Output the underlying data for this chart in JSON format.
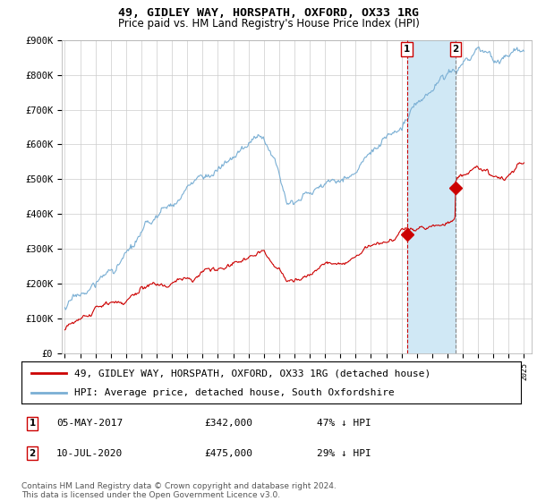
{
  "title": "49, GIDLEY WAY, HORSPATH, OXFORD, OX33 1RG",
  "subtitle": "Price paid vs. HM Land Registry's House Price Index (HPI)",
  "ylim": [
    0,
    900000
  ],
  "yticks": [
    0,
    100000,
    200000,
    300000,
    400000,
    500000,
    600000,
    700000,
    800000,
    900000
  ],
  "ytick_labels": [
    "£0",
    "£100K",
    "£200K",
    "£300K",
    "£400K",
    "£500K",
    "£600K",
    "£700K",
    "£800K",
    "£900K"
  ],
  "hpi_color": "#7aafd4",
  "price_color": "#cc0000",
  "vline1_color": "#cc0000",
  "vline2_color": "#888888",
  "fill_color": "#d0e8f5",
  "background_color": "#ffffff",
  "grid_color": "#cccccc",
  "sale1_date_num": 2017.35,
  "sale1_price": 342000,
  "sale1_label": "1",
  "sale2_date_num": 2020.53,
  "sale2_price": 475000,
  "sale2_label": "2",
  "legend_line1": "49, GIDLEY WAY, HORSPATH, OXFORD, OX33 1RG (detached house)",
  "legend_line2": "HPI: Average price, detached house, South Oxfordshire",
  "table_row1": [
    "1",
    "05-MAY-2017",
    "£342,000",
    "47% ↓ HPI"
  ],
  "table_row2": [
    "2",
    "10-JUL-2020",
    "£475,000",
    "29% ↓ HPI"
  ],
  "footer": "Contains HM Land Registry data © Crown copyright and database right 2024.\nThis data is licensed under the Open Government Licence v3.0.",
  "title_fontsize": 9.5,
  "subtitle_fontsize": 8.5,
  "tick_fontsize": 7.5,
  "legend_fontsize": 8,
  "footer_fontsize": 6.5
}
